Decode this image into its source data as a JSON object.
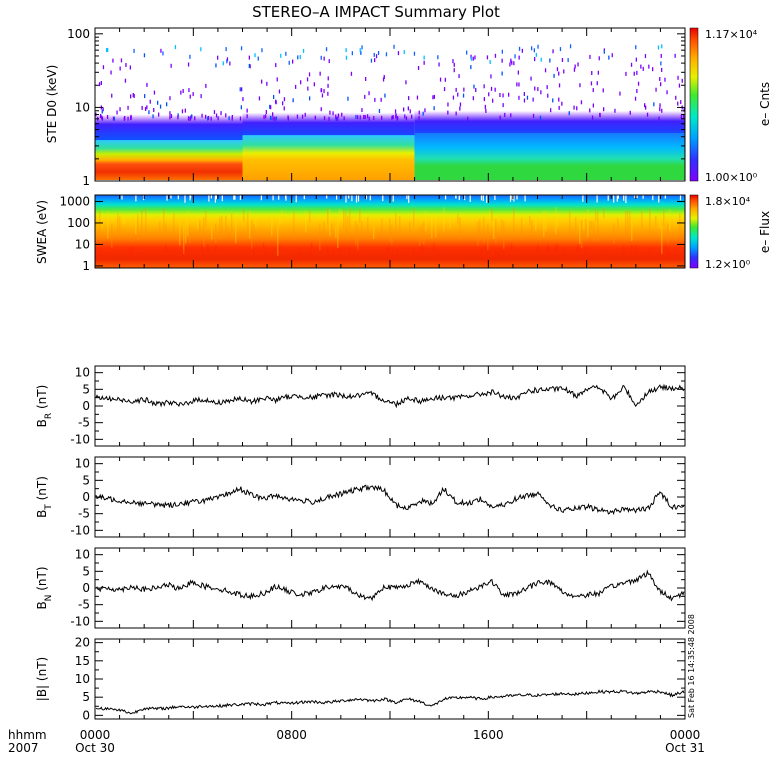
{
  "title": "STEREO–A IMPACT Summary Plot",
  "timestamp": "Sat Feb 16 14:35:48 2008",
  "chart_data": [
    {
      "type": "heatmap",
      "ylabel": "STE D0 (keV)",
      "yscale": "log",
      "ylim": [
        1,
        120
      ],
      "y_ticks": [
        "1",
        "10",
        "100"
      ],
      "colorbar": {
        "label": "e– Cnts",
        "max_label": "1.17×10⁴",
        "min_label": "1.00×10⁰",
        "max": 11700,
        "min": 1
      }
    },
    {
      "type": "heatmap",
      "ylabel": "SWEA (eV)",
      "yscale": "log",
      "ylim": [
        0.8,
        2000
      ],
      "y_ticks": [
        "1",
        "10",
        "100",
        "1000"
      ],
      "colorbar": {
        "label": "e– Flux",
        "max_label": "1.8×10⁴",
        "min_label": "1.2×10⁰",
        "max": 18000,
        "min": 1.2
      }
    },
    {
      "type": "line",
      "ylabel": "B_R (nT)",
      "ylim": [
        -12,
        12
      ],
      "y_ticks": [
        "10",
        "5",
        "0",
        "-5",
        "-10"
      ],
      "series": [
        {
          "values": [
            2.5,
            2.2,
            1.8,
            1.5,
            2.0,
            0.5,
            1.2,
            0.2,
            1.5,
            2.0,
            0.8,
            1.6,
            2.1,
            1.2,
            2.5,
            1.8,
            2.8,
            3.0,
            2.5,
            3.2,
            3.5,
            2.8,
            3.2,
            3.6,
            1.8,
            0.5,
            2.5,
            1.5,
            2.2,
            2.6,
            2.4,
            3.0,
            3.5,
            4.2,
            2.8,
            2.0,
            4.5,
            4.8,
            5.0,
            5.2,
            3.0,
            5.5,
            5.4,
            2.0,
            5.8,
            0.2,
            4.2,
            5.5,
            5.5,
            5.2
          ]
        }
      ]
    },
    {
      "type": "line",
      "ylabel": "B_T (nT)",
      "ylim": [
        -12,
        12
      ],
      "y_ticks": [
        "10",
        "5",
        "0",
        "-5",
        "-10"
      ],
      "series": [
        {
          "values": [
            0.0,
            -0.5,
            -1.0,
            -1.5,
            -2.0,
            -2.2,
            -2.5,
            -2.0,
            -1.5,
            -1.0,
            -0.5,
            1.0,
            2.5,
            0.5,
            -0.5,
            0.5,
            -0.5,
            -1.0,
            -1.5,
            -0.5,
            0.5,
            1.5,
            2.5,
            3.0,
            2.0,
            -2.5,
            -3.5,
            -1.0,
            -2.0,
            2.5,
            -1.5,
            -2.0,
            -0.5,
            -3.0,
            -2.5,
            -0.5,
            0.5,
            1.0,
            -3.0,
            -4.0,
            -3.5,
            -3.0,
            -4.0,
            -4.5,
            -3.5,
            -4.0,
            -3.5,
            1.5,
            -3.0,
            -2.5
          ]
        }
      ]
    },
    {
      "type": "line",
      "ylabel": "B_N (nT)",
      "ylim": [
        -12,
        12
      ],
      "y_ticks": [
        "10",
        "5",
        "0",
        "-5",
        "-10"
      ],
      "series": [
        {
          "values": [
            -0.5,
            0.0,
            -0.5,
            0.5,
            -0.5,
            0.0,
            1.0,
            -0.5,
            2.0,
            0.5,
            0.0,
            -1.0,
            -2.0,
            -2.5,
            -1.5,
            0.5,
            -1.0,
            -2.0,
            -1.5,
            0.0,
            0.5,
            0.0,
            -2.5,
            -3.0,
            0.5,
            0.0,
            1.0,
            2.0,
            0.0,
            -2.0,
            -2.5,
            -1.0,
            0.5,
            2.0,
            -2.5,
            -1.5,
            0.0,
            2.0,
            1.5,
            -1.5,
            -2.5,
            -2.0,
            -1.5,
            0.5,
            1.5,
            2.5,
            4.5,
            -1.0,
            -3.0,
            -1.5
          ]
        }
      ]
    },
    {
      "type": "line",
      "ylabel": "|B| (nT)",
      "ylim": [
        -1,
        21
      ],
      "y_ticks": [
        "20",
        "15",
        "10",
        "5",
        "0"
      ],
      "series": [
        {
          "values": [
            2.0,
            1.8,
            1.5,
            0.5,
            2.0,
            1.8,
            2.0,
            2.5,
            2.2,
            2.6,
            2.5,
            2.8,
            3.0,
            3.2,
            3.0,
            3.5,
            3.2,
            3.6,
            3.8,
            3.5,
            3.8,
            4.2,
            4.5,
            4.0,
            4.5,
            3.6,
            4.5,
            3.8,
            2.5,
            4.5,
            4.8,
            5.0,
            4.5,
            5.0,
            5.2,
            5.5,
            5.6,
            5.5,
            5.8,
            6.0,
            5.8,
            6.2,
            6.5,
            6.5,
            6.6,
            6.0,
            6.5,
            6.6,
            5.5,
            6.5
          ]
        }
      ]
    }
  ],
  "x_axis": {
    "range_hours": [
      0,
      24
    ],
    "ticks": [
      {
        "hour": 0,
        "label": "0000",
        "sublabel": "Oct 30"
      },
      {
        "hour": 8,
        "label": "0800",
        "sublabel": ""
      },
      {
        "hour": 16,
        "label": "1600",
        "sublabel": ""
      },
      {
        "hour": 24,
        "label": "0000",
        "sublabel": "Oct 31"
      }
    ],
    "row_label": "hhmm",
    "year_label": "2007"
  }
}
